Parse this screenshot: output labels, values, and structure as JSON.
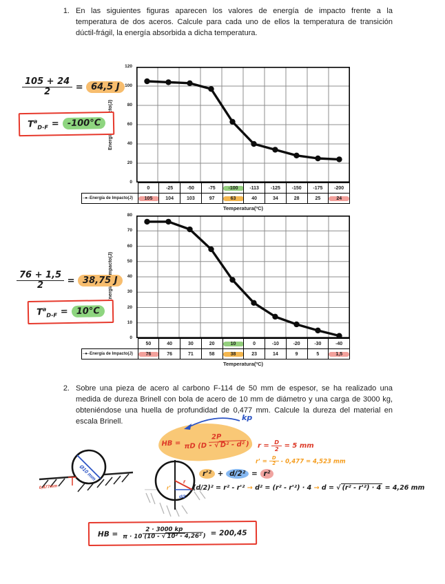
{
  "colors": {
    "highlight_green": "#93cf7d",
    "highlight_orange": "#f3b64e",
    "highlight_red": "#f2a09b",
    "ink_red": "#dd3a28",
    "ink_orange": "#f59d1e",
    "ink_blue": "#2b53c4"
  },
  "problem1": {
    "number": "1.",
    "lines": [
      "En las siguientes figuras aparecen los valores de energía de impacto frente a la",
      "temperatura de dos aceros. Calcule para cada uno de ellos la temperatura de transición",
      "dúctil-frágil, la energía absorbida a dicha temperatura."
    ]
  },
  "problem2": {
    "number": "2.",
    "lines": [
      "Sobre una pieza de acero al carbono F-114 de 50 mm de espesor, se ha realizado una",
      "medida de dureza Brinell con bola de acero de 10 mm de diámetro y una carga de 3000 kg,",
      "obteniéndose una huella de profundidad de 0,477 mm. Calcule la dureza del material en",
      "escala Brinell."
    ]
  },
  "chart_data": [
    {
      "type": "line",
      "categories": [
        "0",
        "-25",
        "-50",
        "-75",
        "-100",
        "-113",
        "-125",
        "-150",
        "-175",
        "-200"
      ],
      "values": [
        105,
        104,
        103,
        97,
        63,
        40,
        34,
        28,
        25,
        24
      ],
      "display_values": [
        "105",
        "104",
        "103",
        "97",
        "63",
        "40",
        "34",
        "28",
        "25",
        "24"
      ],
      "xlabel": "Temperatura(ºC)",
      "ylabel": "Energía de Impacto(J)",
      "legend": "Energía de Impacto(J)",
      "legend_marker": "─●─",
      "ylim": [
        0,
        120
      ],
      "ytick_step": 20,
      "grid": true,
      "legend_position": "table-left",
      "highlights": {
        "category": [
          {
            "index": 4,
            "color": "green"
          }
        ],
        "value": [
          {
            "index": 0,
            "color": "red"
          },
          {
            "index": 4,
            "color": "orange"
          },
          {
            "index": 9,
            "color": "red"
          }
        ]
      }
    },
    {
      "type": "line",
      "categories": [
        "50",
        "40",
        "30",
        "20",
        "10",
        "0",
        "-10",
        "-20",
        "-30",
        "-40"
      ],
      "values": [
        76,
        76,
        71,
        58,
        38,
        23,
        14,
        9,
        5,
        1.5
      ],
      "display_values": [
        "76",
        "76",
        "71",
        "58",
        "38",
        "23",
        "14",
        "9",
        "5",
        "1,5"
      ],
      "xlabel": "Temperatura(ºC)",
      "ylabel": "Energía de Impacto(J)",
      "legend": "Energía de Impacto(J)",
      "legend_marker": "─●─",
      "ylim": [
        0,
        80
      ],
      "ytick_step": 10,
      "grid": true,
      "legend_position": "table-left",
      "highlights": {
        "category": [
          {
            "index": 4,
            "color": "green"
          }
        ],
        "value": [
          {
            "index": 0,
            "color": "red"
          },
          {
            "index": 4,
            "color": "orange"
          },
          {
            "index": 9,
            "color": "red"
          }
        ]
      }
    }
  ],
  "solutions": {
    "calc1": {
      "num": "105 + 24",
      "den": "2",
      "eq": "=",
      "result": "64,5 J"
    },
    "trans1": {
      "base": "T",
      "sup": "a",
      "sub": "D-F",
      "eq": "=",
      "value": "-100°C"
    },
    "calc2": {
      "num": "76 + 1,5",
      "den": "2",
      "eq": "=",
      "result": "38,75 J"
    },
    "trans2": {
      "base": "T",
      "sup": "a",
      "sub": "D-F",
      "eq": "=",
      "value": "10°C"
    }
  },
  "work2": {
    "hb_formula": {
      "lhs": "HB =",
      "num": "2P",
      "den_pre": "πD (D - √",
      "den_rad": "D² - d²",
      "den_post": ")"
    },
    "force_label": "kp",
    "radius1": {
      "pre": "r =",
      "num": "D",
      "den": "2",
      "post": "= 5 mm"
    },
    "radius2": {
      "pre": "r' =",
      "num": "D",
      "den": "2",
      "post": "- 0,477 = 4,523 mm"
    },
    "ball_diameter_label": "Ø10 mm",
    "depth_label": "0,477mm",
    "circle_labels": {
      "r_prime": "r'",
      "r": "r",
      "half_d": "d/2"
    },
    "pythagoras": {
      "t1": "r'²",
      "op": "+",
      "t2": "d/2²",
      "eq": "=",
      "t3": "r²"
    },
    "derivation": {
      "s1": "(d/2)² = r² - r'²",
      "arrow": "→",
      "s2": "d² = (r² - r'²) · 4",
      "s3_pre": "d = √",
      "s3_rad": "(r² - r'²) · 4",
      "s3_post": "= 4,26 mm"
    },
    "final": {
      "lhs": "HB =",
      "num": "2 · 3000 kp",
      "den_pre": "π · 10 (10 - √",
      "den_rad": "10² - 4,26²",
      "den_post": ")",
      "result": "= 200,45"
    }
  }
}
